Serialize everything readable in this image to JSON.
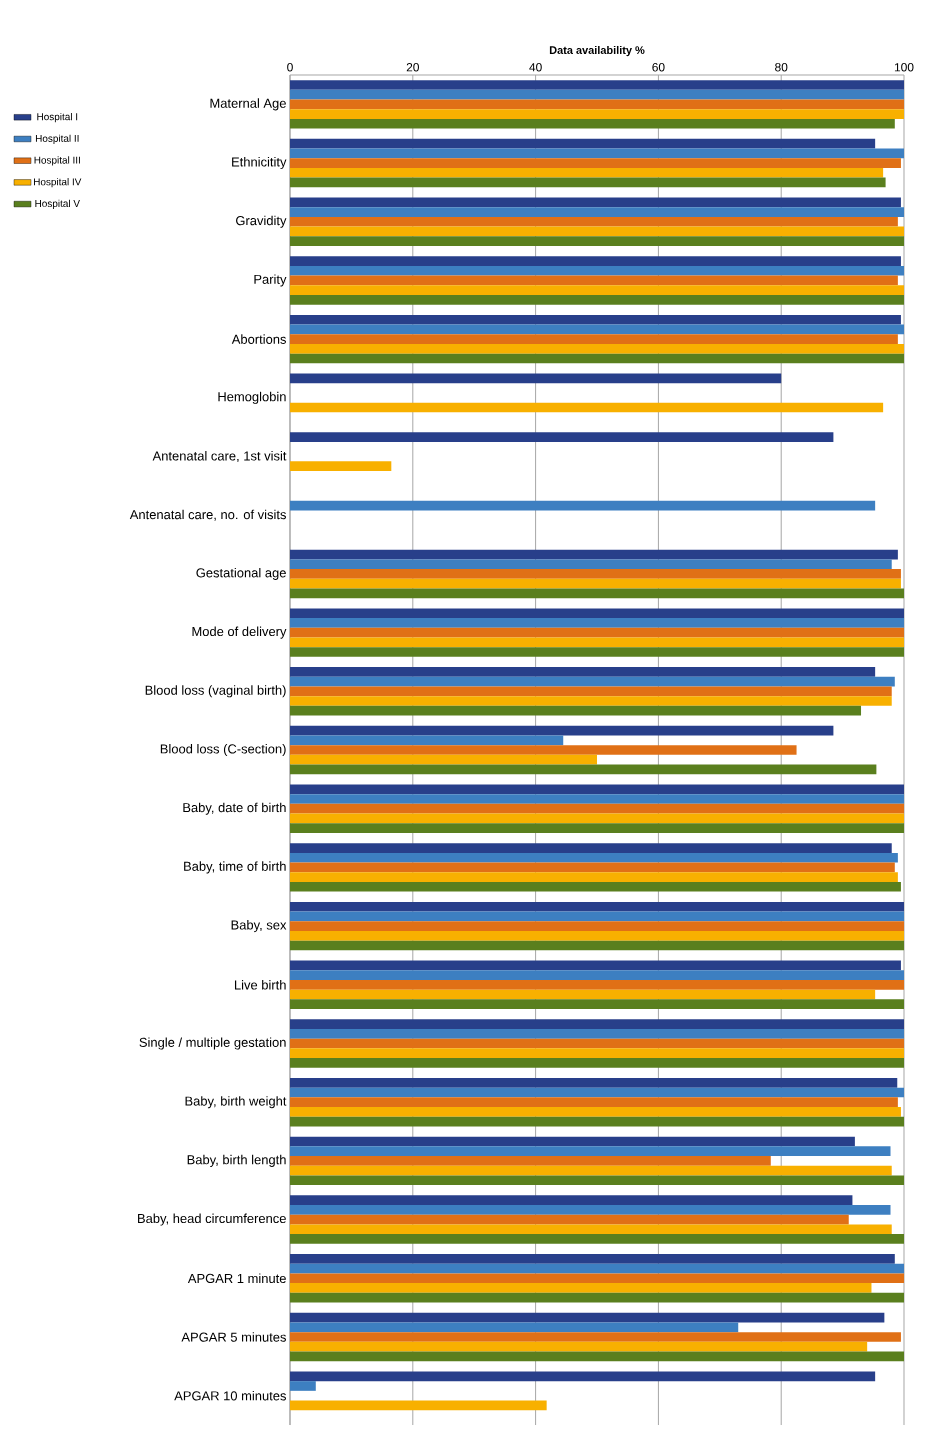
{
  "chart_data": {
    "type": "bar",
    "orientation": "horizontal",
    "xlabel": "Data availability %",
    "categories": [
      "Maternal Age",
      "Ethnicitity",
      "Gravidity",
      "Parity",
      "Abortions",
      "Hemoglobin",
      "Antenatal care, 1st visit",
      "Antenatal care, no. of visits",
      "Gestational age",
      "Mode of delivery",
      "Blood loss (vaginal birth)",
      "Blood loss (C-section)",
      "Baby, date of birth",
      "Baby, time of birth",
      "Baby, sex",
      "Live birth",
      "Single / multiple gestation",
      "Baby, birth weight",
      "Baby, birth length",
      "Baby, head circumference",
      "APGAR 1 minute",
      "APGAR 5 minutes",
      "APGAR 10 minutes"
    ],
    "series": [
      {
        "name": "Hospital I",
        "color": "#283f8a",
        "values": [
          100,
          95.3,
          99.5,
          99.5,
          99.5,
          80,
          88.5,
          null,
          99,
          100,
          95.3,
          88.5,
          100,
          98,
          100,
          99.5,
          100,
          98.9,
          92,
          91.6,
          98.5,
          96.8,
          95.3
        ]
      },
      {
        "name": "Hospital II",
        "color": "#3d7fc1",
        "values": [
          100,
          100,
          100,
          100,
          100,
          null,
          null,
          95.3,
          98,
          100,
          98.5,
          44.5,
          100,
          99,
          100,
          100,
          100,
          100,
          97.8,
          97.8,
          100,
          73,
          4.2
        ]
      },
      {
        "name": "Hospital III",
        "color": "#e07016",
        "values": [
          100,
          99.5,
          99,
          99,
          99,
          null,
          null,
          null,
          99.5,
          100,
          98,
          82.5,
          100,
          98.5,
          100,
          100,
          100,
          99,
          78.3,
          91,
          100,
          99.5,
          null
        ]
      },
      {
        "name": "Hospital IV",
        "color": "#f8b000",
        "values": [
          100,
          96.6,
          100,
          100,
          100,
          96.6,
          16.5,
          null,
          99.5,
          100,
          98,
          50,
          100,
          99,
          100,
          95.3,
          100,
          99.5,
          98,
          98,
          94.7,
          94,
          41.8
        ]
      },
      {
        "name": "Hospital V",
        "color": "#5a7f1e",
        "values": [
          98.5,
          97,
          100,
          100,
          100,
          null,
          null,
          null,
          100,
          100,
          93,
          95.5,
          100,
          99.5,
          100,
          100,
          100,
          100,
          100,
          100,
          100,
          100,
          null
        ]
      }
    ],
    "xlim": [
      0,
      100
    ],
    "xticks": [
      0,
      20,
      40,
      60,
      80,
      100
    ],
    "grid": "x",
    "legend": "top left"
  }
}
